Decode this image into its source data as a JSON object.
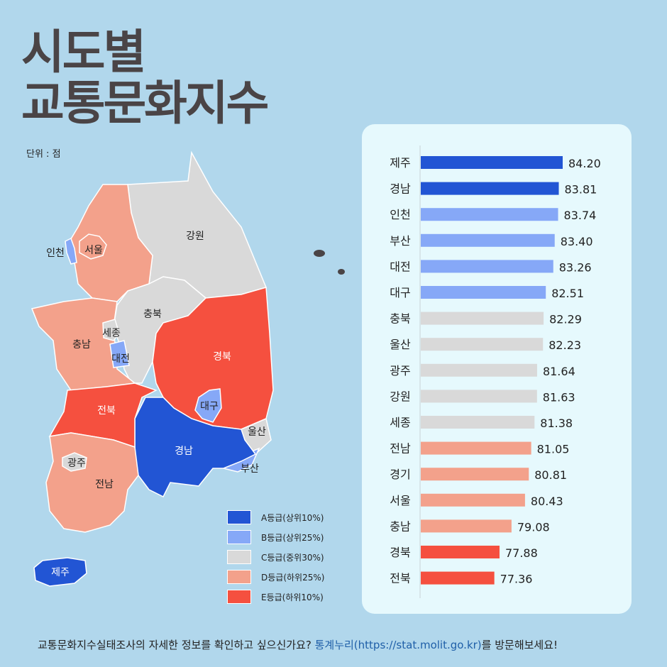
{
  "title_line1": "시도별",
  "title_line2": "교통문화지수",
  "unit": "단위 : 점",
  "grade_colors": {
    "A": "#2255d4",
    "B": "#86a8f7",
    "C": "#d9d9d9",
    "D": "#f3a18b",
    "E": "#f5503f"
  },
  "legend": [
    {
      "grade": "A",
      "label": "A등급(상위10%)"
    },
    {
      "grade": "B",
      "label": "B등급(상위25%)"
    },
    {
      "grade": "C",
      "label": "C등급(중위30%)"
    },
    {
      "grade": "D",
      "label": "D등급(하위25%)"
    },
    {
      "grade": "E",
      "label": "E등급(하위10%)"
    }
  ],
  "map_regions": [
    {
      "name": "강원",
      "grade": "C"
    },
    {
      "name": "경기",
      "grade": "D"
    },
    {
      "name": "서울",
      "grade": "D"
    },
    {
      "name": "인천",
      "grade": "B"
    },
    {
      "name": "충북",
      "grade": "C"
    },
    {
      "name": "충남",
      "grade": "D"
    },
    {
      "name": "세종",
      "grade": "C"
    },
    {
      "name": "대전",
      "grade": "B"
    },
    {
      "name": "경북",
      "grade": "E"
    },
    {
      "name": "대구",
      "grade": "B"
    },
    {
      "name": "울산",
      "grade": "C"
    },
    {
      "name": "부산",
      "grade": "B"
    },
    {
      "name": "경남",
      "grade": "A"
    },
    {
      "name": "전북",
      "grade": "E"
    },
    {
      "name": "전남",
      "grade": "D"
    },
    {
      "name": "광주",
      "grade": "C"
    },
    {
      "name": "제주",
      "grade": "A"
    }
  ],
  "chart_data": {
    "type": "bar",
    "orientation": "horizontal",
    "categories": [
      "제주",
      "경남",
      "인천",
      "부산",
      "대전",
      "대구",
      "충북",
      "울산",
      "광주",
      "강원",
      "세종",
      "전남",
      "경기",
      "서울",
      "충남",
      "경북",
      "전북"
    ],
    "values": [
      84.2,
      83.81,
      83.74,
      83.4,
      83.26,
      82.51,
      82.29,
      82.23,
      81.64,
      81.63,
      81.38,
      81.05,
      80.81,
      80.43,
      79.08,
      77.88,
      77.36
    ],
    "value_labels": [
      "84.20",
      "83.81",
      "83.74",
      "83.40",
      "83.26",
      "82.51",
      "82.29",
      "82.23",
      "81.64",
      "81.63",
      "81.38",
      "81.05",
      "80.81",
      "80.43",
      "79.08",
      "77.88",
      "77.36"
    ],
    "grades": [
      "A",
      "A",
      "B",
      "B",
      "B",
      "B",
      "C",
      "C",
      "C",
      "C",
      "C",
      "D",
      "D",
      "D",
      "D",
      "E",
      "E"
    ],
    "xlim": [
      70,
      85
    ],
    "grid": false
  },
  "footer": {
    "text": "교통문화지수실태조사의 자세한 정보를 확인하고 싶으신가요? ",
    "link": "통계누리(https://stat.molit.go.kr)",
    "suffix": "를 방문해보세요!"
  }
}
